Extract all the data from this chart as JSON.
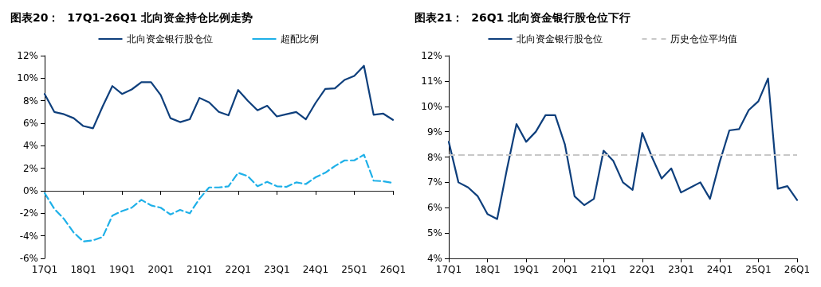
{
  "chart_data": [
    {
      "type": "line",
      "title": "图表20：  17Q1-26Q1 北向资金持仓比例走势",
      "categories": [
        "17Q1",
        null,
        null,
        null,
        "18Q1",
        null,
        null,
        null,
        "19Q1",
        null,
        null,
        null,
        "20Q1",
        null,
        null,
        null,
        "21Q1",
        null,
        null,
        null,
        "22Q1",
        null,
        null,
        null,
        "23Q1",
        null,
        null,
        null,
        "24Q1",
        null,
        null,
        null,
        "25Q1",
        null,
        null,
        null,
        "26Q1"
      ],
      "series": [
        {
          "name": "北向资金银行股仓位",
          "color": "#0e3f7c",
          "line_style": "solid",
          "values": [
            8.6,
            7.0,
            6.8,
            6.45,
            5.75,
            5.55,
            7.5,
            9.3,
            8.6,
            9.0,
            9.65,
            9.65,
            8.5,
            6.45,
            6.1,
            6.35,
            8.25,
            7.85,
            7.0,
            6.7,
            8.95,
            8.0,
            7.15,
            7.55,
            6.6,
            6.8,
            7.0,
            6.35,
            7.8,
            9.05,
            9.1,
            9.85,
            10.2,
            11.1,
            6.75,
            6.85,
            6.3
          ]
        },
        {
          "name": "超配比例",
          "color": "#1eb0e8",
          "line_style": "dashed",
          "values": [
            -0.2,
            -1.6,
            -2.5,
            -3.7,
            -4.5,
            -4.4,
            -4.1,
            -2.2,
            -1.8,
            -1.5,
            -0.8,
            -1.3,
            -1.5,
            -2.1,
            -1.7,
            -2.0,
            -0.7,
            0.3,
            0.3,
            0.4,
            1.6,
            1.3,
            0.4,
            0.8,
            0.4,
            0.35,
            0.75,
            0.6,
            1.2,
            1.6,
            2.2,
            2.7,
            2.7,
            3.2,
            0.9,
            0.85,
            0.7
          ]
        }
      ],
      "ylim": [
        -6,
        12
      ],
      "yticks": [
        {
          "value": -6,
          "label": "-6%"
        },
        {
          "value": -4,
          "label": "-4%"
        },
        {
          "value": -2,
          "label": "-2%"
        },
        {
          "value": 0,
          "label": "0%"
        },
        {
          "value": 2,
          "label": "2%"
        },
        {
          "value": 4,
          "label": "4%"
        },
        {
          "value": 6,
          "label": "6%"
        },
        {
          "value": 8,
          "label": "8%"
        },
        {
          "value": 10,
          "label": "10%"
        },
        {
          "value": 12,
          "label": "12%"
        }
      ],
      "legend": "top",
      "marker": "none"
    },
    {
      "type": "line",
      "title": "图表21：  26Q1 北向资金银行股仓位下行",
      "categories": [
        "17Q1",
        null,
        null,
        null,
        "18Q1",
        null,
        null,
        null,
        "19Q1",
        null,
        null,
        null,
        "20Q1",
        null,
        null,
        null,
        "21Q1",
        null,
        null,
        null,
        "22Q1",
        null,
        null,
        null,
        "23Q1",
        null,
        null,
        null,
        "24Q1",
        null,
        null,
        null,
        "25Q1",
        null,
        null,
        null,
        "26Q1"
      ],
      "series": [
        {
          "name": "北向资金银行股仓位",
          "color": "#0e3f7c",
          "values": [
            8.6,
            7.0,
            6.8,
            6.45,
            5.75,
            5.55,
            7.5,
            9.3,
            8.6,
            9.0,
            9.65,
            9.65,
            8.5,
            6.45,
            6.1,
            6.35,
            8.25,
            7.85,
            7.0,
            6.7,
            8.95,
            8.0,
            7.15,
            7.55,
            6.6,
            6.8,
            7.0,
            6.35,
            7.8,
            9.05,
            9.1,
            9.85,
            10.2,
            11.1,
            6.75,
            6.85,
            6.3
          ]
        }
      ],
      "ref_lines": [
        {
          "axis": "y",
          "value": 8.1,
          "label": "历史仓位平均值",
          "color": "#c8c8c8",
          "line_style": "dashed"
        }
      ],
      "ylim": [
        4,
        12
      ],
      "yticks": [
        {
          "value": 4,
          "label": "4%"
        },
        {
          "value": 5,
          "label": "5%"
        },
        {
          "value": 6,
          "label": "6%"
        },
        {
          "value": 7,
          "label": "7%"
        },
        {
          "value": 8,
          "label": "8%"
        },
        {
          "value": 9,
          "label": "9%"
        },
        {
          "value": 10,
          "label": "10%"
        },
        {
          "value": 11,
          "label": "11%"
        },
        {
          "value": 12,
          "label": "12%"
        }
      ],
      "grid": false,
      "legend": "top",
      "marker": "none"
    }
  ]
}
